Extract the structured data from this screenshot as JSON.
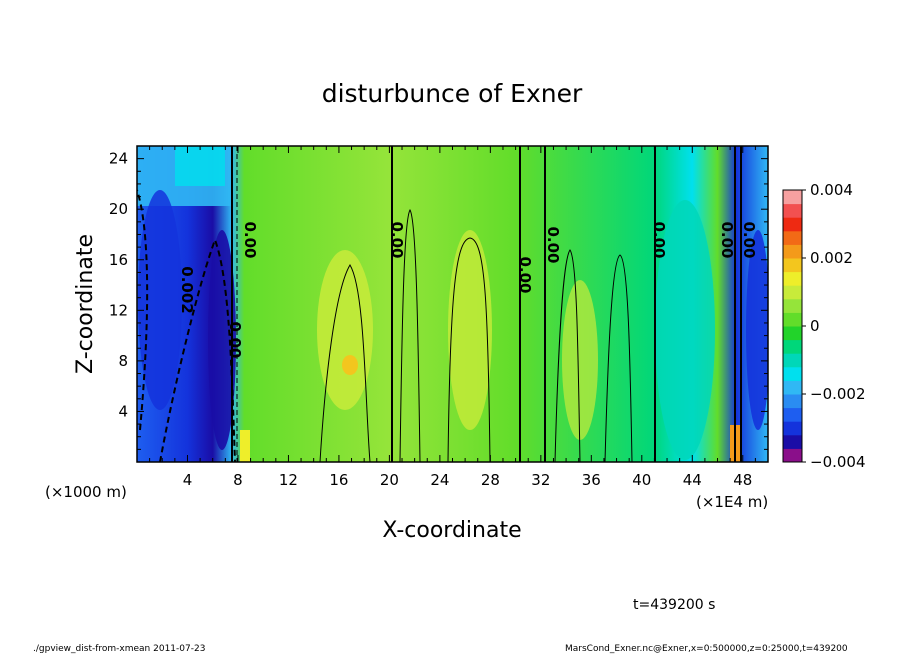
{
  "chart_data": {
    "type": "heatmap",
    "title": "disturbunce of Exner",
    "xlabel": "X-coordinate",
    "ylabel": "Z-coordinate",
    "x_unit_left": "(×1000 m)",
    "x_unit_right": "(×1E4 m)",
    "xlim": [
      0,
      50
    ],
    "ylim": [
      0,
      25
    ],
    "x_ticks": [
      "4",
      "8",
      "12",
      "16",
      "20",
      "24",
      "28",
      "32",
      "36",
      "40",
      "44",
      "48"
    ],
    "y_ticks": [
      "4",
      "8",
      "12",
      "16",
      "20",
      "24"
    ],
    "colorbar": {
      "range": [
        -0.004,
        0.004
      ],
      "tick_labels": [
        "0.004",
        "0.002",
        "0",
        "−0.002",
        "−0.004"
      ],
      "colors": [
        "#8a0f8a",
        "#1a0da6",
        "#1433dc",
        "#1e5ef0",
        "#2a8cf2",
        "#30b8f4",
        "#00e0ee",
        "#00d7b8",
        "#00d77a",
        "#22d32a",
        "#62dd2a",
        "#95e43a",
        "#c8eb3a",
        "#eeee2a",
        "#f3c61e",
        "#f49a1a",
        "#f26a16",
        "#ee2a12",
        "#f25050",
        "#f6a0a0"
      ]
    },
    "contour_labels": [
      "0.002",
      "0.00",
      "0.00",
      "0.00",
      "0.00",
      "0.00",
      "0.00",
      "0.00",
      "0.00"
    ],
    "annotation_time": "t=439200 s",
    "footer_left": "./gpview_dist-from-xmean   2011-07-23",
    "footer_right": "MarsCond_Exner.nc@Exner,x=0:500000,z=0:25000,t=439200"
  }
}
